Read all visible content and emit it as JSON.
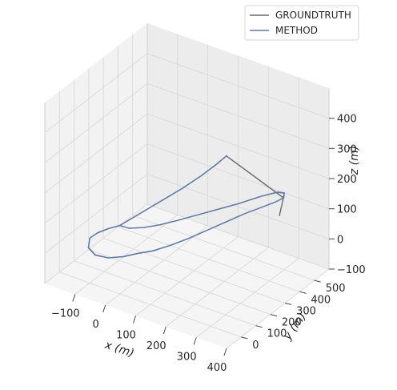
{
  "chart_data": {
    "type": "line3d",
    "title": "",
    "xlabel": "x (m)",
    "ylabel": "y (m)",
    "zlabel": "z (m)",
    "xlim": [
      -200,
      400
    ],
    "ylim": [
      -100,
      600
    ],
    "zlim": [
      -100,
      500
    ],
    "xticks": [
      -100,
      0,
      100,
      200,
      300,
      400
    ],
    "yticks": [
      0,
      100,
      200,
      300,
      400,
      500
    ],
    "zticks": [
      -100,
      0,
      100,
      200,
      300,
      400
    ],
    "legend_position": "top-right",
    "grid": true,
    "series": [
      {
        "name": "GROUNDTRUTH",
        "color": "#6b6b6b",
        "points": [
          [
            -30,
            60,
            0
          ],
          [
            -55,
            40,
            0
          ],
          [
            -80,
            15,
            0
          ],
          [
            -95,
            -10,
            0
          ],
          [
            -85,
            -40,
            0
          ],
          [
            -55,
            -55,
            0
          ],
          [
            -15,
            -50,
            0
          ],
          [
            25,
            -30,
            0
          ],
          [
            60,
            -5,
            0
          ],
          [
            100,
            20,
            0
          ],
          [
            140,
            55,
            0
          ],
          [
            180,
            95,
            0
          ],
          [
            220,
            140,
            0
          ],
          [
            260,
            185,
            0
          ],
          [
            300,
            230,
            0
          ],
          [
            340,
            270,
            0
          ],
          [
            370,
            300,
            0
          ],
          [
            385,
            320,
            0
          ],
          [
            380,
            335,
            0
          ],
          [
            360,
            330,
            0
          ],
          [
            320,
            300,
            0
          ],
          [
            270,
            255,
            0
          ],
          [
            220,
            215,
            0
          ],
          [
            170,
            175,
            0
          ],
          [
            120,
            135,
            0
          ],
          [
            80,
            105,
            0
          ],
          [
            40,
            80,
            0
          ],
          [
            0,
            62,
            0
          ],
          [
            -30,
            60,
            0
          ],
          [
            -30,
            60,
            0
          ],
          [
            10,
            120,
            0
          ],
          [
            50,
            180,
            0
          ],
          [
            90,
            240,
            0
          ],
          [
            125,
            300,
            0
          ],
          [
            150,
            350,
            0
          ],
          [
            165,
            385,
            0
          ],
          [
            385,
            320,
            0
          ],
          [
            390,
            300,
            0
          ],
          [
            395,
            280,
            0
          ],
          [
            400,
            262,
            0
          ]
        ]
      },
      {
        "name": "METHOD",
        "color": "#5a7db5",
        "points": [
          [
            -30,
            60,
            0
          ],
          [
            -56,
            40,
            0
          ],
          [
            -81,
            15,
            0
          ],
          [
            -95,
            -10,
            0
          ],
          [
            -85,
            -41,
            0
          ],
          [
            -55,
            -56,
            0
          ],
          [
            -15,
            -50,
            0
          ],
          [
            26,
            -30,
            0
          ],
          [
            61,
            -5,
            0
          ],
          [
            101,
            20,
            0
          ],
          [
            141,
            56,
            0
          ],
          [
            181,
            96,
            0
          ],
          [
            221,
            141,
            0
          ],
          [
            261,
            186,
            0
          ],
          [
            301,
            231,
            0
          ],
          [
            341,
            271,
            0
          ],
          [
            371,
            301,
            0
          ],
          [
            386,
            321,
            0
          ],
          [
            380,
            336,
            0
          ],
          [
            360,
            331,
            0
          ],
          [
            320,
            300,
            0
          ],
          [
            270,
            255,
            0
          ],
          [
            220,
            215,
            0
          ],
          [
            170,
            175,
            0
          ],
          [
            120,
            135,
            0
          ],
          [
            80,
            105,
            0
          ],
          [
            40,
            80,
            0
          ],
          [
            0,
            62,
            0
          ],
          [
            -30,
            60,
            0
          ],
          [
            -30,
            60,
            0
          ],
          [
            11,
            121,
            0
          ],
          [
            51,
            181,
            0
          ],
          [
            91,
            241,
            0
          ],
          [
            126,
            301,
            0
          ],
          [
            151,
            351,
            0
          ],
          [
            166,
            386,
            0
          ]
        ]
      }
    ]
  }
}
